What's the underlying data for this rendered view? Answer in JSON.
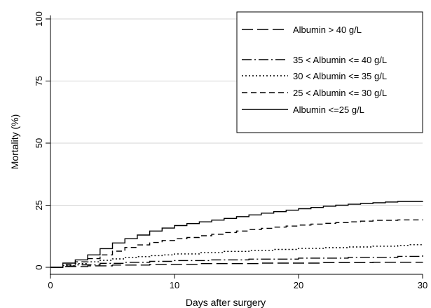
{
  "chart_data": {
    "type": "line",
    "title": "",
    "xlabel": "Days after surgery",
    "ylabel": "Mortality (%)",
    "xlim": [
      0,
      30
    ],
    "ylim": [
      0,
      100
    ],
    "xticks": [
      0,
      10,
      20,
      30
    ],
    "yticks": [
      0,
      25,
      50,
      75,
      100
    ],
    "grid": "horizontal",
    "legend_position": "top-right",
    "step": true,
    "series": [
      {
        "name": "Albumin > 40 g/L",
        "dash": "16,6",
        "x": [
          0,
          1,
          3,
          5,
          8,
          12,
          17,
          22,
          26,
          30
        ],
        "y": [
          0,
          0.3,
          0.6,
          0.9,
          1.2,
          1.5,
          1.7,
          1.9,
          2.0,
          2.1
        ]
      },
      {
        "name": "35 < Albumin <= 40 g/L",
        "dash": "14,4,2,4",
        "x": [
          0,
          1,
          2,
          4,
          6,
          8,
          10,
          13,
          16,
          20,
          24,
          28,
          30
        ],
        "y": [
          0,
          0.5,
          1.0,
          1.6,
          2.0,
          2.4,
          2.7,
          3.0,
          3.3,
          3.7,
          4.0,
          4.4,
          4.8
        ]
      },
      {
        "name": "30 < Albumin <= 35 g/L",
        "dash": "2,3",
        "x": [
          0,
          1,
          2,
          3,
          4,
          5,
          6,
          7,
          8,
          9,
          10,
          12,
          14,
          16,
          18,
          20,
          22,
          24,
          26,
          28,
          29,
          30
        ],
        "y": [
          0,
          0.7,
          1.5,
          2.2,
          2.8,
          3.4,
          3.9,
          4.3,
          4.7,
          5.0,
          5.4,
          5.9,
          6.4,
          6.8,
          7.2,
          7.6,
          7.9,
          8.2,
          8.5,
          8.8,
          9.1,
          9.3
        ]
      },
      {
        "name": "25 < Albumin <= 30 g/L",
        "dash": "8,5",
        "x": [
          0,
          1,
          2,
          3,
          4,
          5,
          6,
          7,
          8,
          9,
          10,
          11,
          12,
          13,
          14,
          15,
          16,
          17,
          18,
          19,
          20,
          21,
          22,
          23,
          24,
          25,
          26,
          28,
          30
        ],
        "y": [
          0,
          1.2,
          2.2,
          3.5,
          5.0,
          6.5,
          8.0,
          9.0,
          10.0,
          10.8,
          11.5,
          12.0,
          12.7,
          13.3,
          14.0,
          14.6,
          15.2,
          15.7,
          16.2,
          16.6,
          17.0,
          17.4,
          17.7,
          18.0,
          18.3,
          18.6,
          18.9,
          19.1,
          19.3
        ]
      },
      {
        "name": "Albumin <=25 g/L",
        "dash": "",
        "x": [
          0,
          1,
          2,
          3,
          4,
          5,
          6,
          7,
          8,
          9,
          10,
          11,
          12,
          13,
          14,
          15,
          16,
          17,
          18,
          19,
          20,
          21,
          22,
          23,
          24,
          25,
          26,
          27,
          28,
          30
        ],
        "y": [
          0,
          1.7,
          3.0,
          5.0,
          7.5,
          9.8,
          11.5,
          13.0,
          14.6,
          15.8,
          16.8,
          17.6,
          18.3,
          19.0,
          19.7,
          20.4,
          21.1,
          21.8,
          22.4,
          23.0,
          23.6,
          24.1,
          24.6,
          25.0,
          25.4,
          25.7,
          26.0,
          26.3,
          26.5,
          26.6
        ]
      }
    ]
  }
}
